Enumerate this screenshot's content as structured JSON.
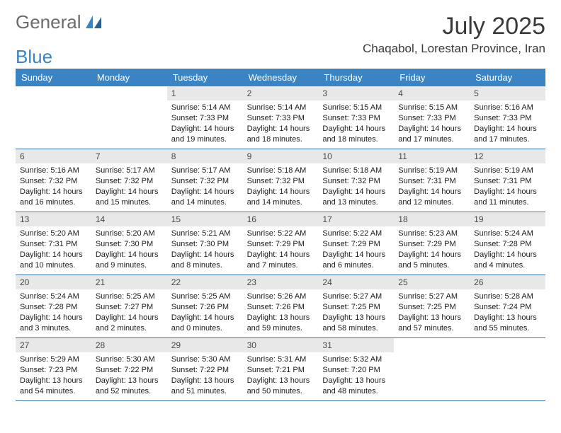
{
  "logo": {
    "word1": "General",
    "word2": "Blue"
  },
  "title": "July 2025",
  "location": "Chaqabol, Lorestan Province, Iran",
  "colors": {
    "header_bg": "#3b84c4",
    "header_text": "#ffffff",
    "daynum_bg": "#e8e8e8",
    "daynum_text": "#4a4a4a",
    "rule": "#3b6fa0",
    "body_text": "#1a1a1a",
    "logo_gray": "#6b6b6b",
    "logo_blue": "#3b84c4",
    "page_bg": "#ffffff"
  },
  "typography": {
    "title_fontsize": 34,
    "location_fontsize": 17,
    "weekday_fontsize": 13,
    "daynum_fontsize": 12,
    "body_fontsize": 11,
    "logo_fontsize": 26
  },
  "weekdays": [
    "Sunday",
    "Monday",
    "Tuesday",
    "Wednesday",
    "Thursday",
    "Friday",
    "Saturday"
  ],
  "weeks": [
    [
      null,
      null,
      {
        "n": "1",
        "sr": "5:14 AM",
        "ss": "7:33 PM",
        "dl": "14 hours and 19 minutes."
      },
      {
        "n": "2",
        "sr": "5:14 AM",
        "ss": "7:33 PM",
        "dl": "14 hours and 18 minutes."
      },
      {
        "n": "3",
        "sr": "5:15 AM",
        "ss": "7:33 PM",
        "dl": "14 hours and 18 minutes."
      },
      {
        "n": "4",
        "sr": "5:15 AM",
        "ss": "7:33 PM",
        "dl": "14 hours and 17 minutes."
      },
      {
        "n": "5",
        "sr": "5:16 AM",
        "ss": "7:33 PM",
        "dl": "14 hours and 17 minutes."
      }
    ],
    [
      {
        "n": "6",
        "sr": "5:16 AM",
        "ss": "7:32 PM",
        "dl": "14 hours and 16 minutes."
      },
      {
        "n": "7",
        "sr": "5:17 AM",
        "ss": "7:32 PM",
        "dl": "14 hours and 15 minutes."
      },
      {
        "n": "8",
        "sr": "5:17 AM",
        "ss": "7:32 PM",
        "dl": "14 hours and 14 minutes."
      },
      {
        "n": "9",
        "sr": "5:18 AM",
        "ss": "7:32 PM",
        "dl": "14 hours and 14 minutes."
      },
      {
        "n": "10",
        "sr": "5:18 AM",
        "ss": "7:32 PM",
        "dl": "14 hours and 13 minutes."
      },
      {
        "n": "11",
        "sr": "5:19 AM",
        "ss": "7:31 PM",
        "dl": "14 hours and 12 minutes."
      },
      {
        "n": "12",
        "sr": "5:19 AM",
        "ss": "7:31 PM",
        "dl": "14 hours and 11 minutes."
      }
    ],
    [
      {
        "n": "13",
        "sr": "5:20 AM",
        "ss": "7:31 PM",
        "dl": "14 hours and 10 minutes."
      },
      {
        "n": "14",
        "sr": "5:20 AM",
        "ss": "7:30 PM",
        "dl": "14 hours and 9 minutes."
      },
      {
        "n": "15",
        "sr": "5:21 AM",
        "ss": "7:30 PM",
        "dl": "14 hours and 8 minutes."
      },
      {
        "n": "16",
        "sr": "5:22 AM",
        "ss": "7:29 PM",
        "dl": "14 hours and 7 minutes."
      },
      {
        "n": "17",
        "sr": "5:22 AM",
        "ss": "7:29 PM",
        "dl": "14 hours and 6 minutes."
      },
      {
        "n": "18",
        "sr": "5:23 AM",
        "ss": "7:29 PM",
        "dl": "14 hours and 5 minutes."
      },
      {
        "n": "19",
        "sr": "5:24 AM",
        "ss": "7:28 PM",
        "dl": "14 hours and 4 minutes."
      }
    ],
    [
      {
        "n": "20",
        "sr": "5:24 AM",
        "ss": "7:28 PM",
        "dl": "14 hours and 3 minutes."
      },
      {
        "n": "21",
        "sr": "5:25 AM",
        "ss": "7:27 PM",
        "dl": "14 hours and 2 minutes."
      },
      {
        "n": "22",
        "sr": "5:25 AM",
        "ss": "7:26 PM",
        "dl": "14 hours and 0 minutes."
      },
      {
        "n": "23",
        "sr": "5:26 AM",
        "ss": "7:26 PM",
        "dl": "13 hours and 59 minutes."
      },
      {
        "n": "24",
        "sr": "5:27 AM",
        "ss": "7:25 PM",
        "dl": "13 hours and 58 minutes."
      },
      {
        "n": "25",
        "sr": "5:27 AM",
        "ss": "7:25 PM",
        "dl": "13 hours and 57 minutes."
      },
      {
        "n": "26",
        "sr": "5:28 AM",
        "ss": "7:24 PM",
        "dl": "13 hours and 55 minutes."
      }
    ],
    [
      {
        "n": "27",
        "sr": "5:29 AM",
        "ss": "7:23 PM",
        "dl": "13 hours and 54 minutes."
      },
      {
        "n": "28",
        "sr": "5:30 AM",
        "ss": "7:22 PM",
        "dl": "13 hours and 52 minutes."
      },
      {
        "n": "29",
        "sr": "5:30 AM",
        "ss": "7:22 PM",
        "dl": "13 hours and 51 minutes."
      },
      {
        "n": "30",
        "sr": "5:31 AM",
        "ss": "7:21 PM",
        "dl": "13 hours and 50 minutes."
      },
      {
        "n": "31",
        "sr": "5:32 AM",
        "ss": "7:20 PM",
        "dl": "13 hours and 48 minutes."
      },
      null,
      null
    ]
  ],
  "labels": {
    "sunrise_prefix": "Sunrise: ",
    "sunset_prefix": "Sunset: ",
    "daylight_prefix": "Daylight: "
  }
}
